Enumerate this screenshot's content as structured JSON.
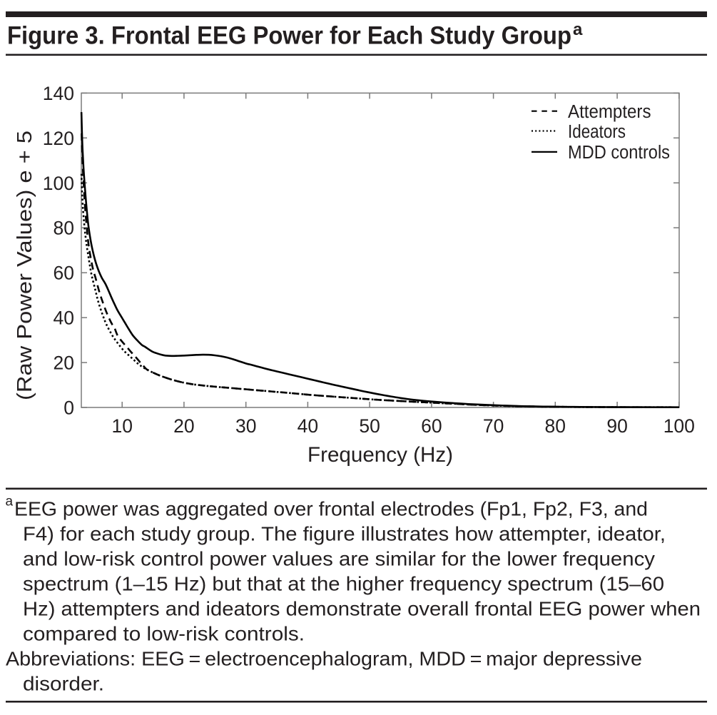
{
  "page": {
    "background": "#ffffff",
    "text_color": "#231f20",
    "rule_color": "#231f20",
    "axis_color": "#7a7a7a",
    "curve_color": "#000000"
  },
  "header": {
    "title": "Figure 3. Frontal EEG Power for Each Study Group",
    "superscript": "a"
  },
  "chart_data": {
    "type": "line",
    "xlabel": "Frequency (Hz)",
    "ylabel": "(Raw Power Values) e + 5",
    "xlim": [
      3.4,
      100
    ],
    "ylim": [
      0,
      140
    ],
    "x_ticks": [
      10,
      20,
      30,
      40,
      50,
      60,
      70,
      80,
      90,
      100
    ],
    "y_ticks": [
      0,
      20,
      40,
      60,
      80,
      100,
      120,
      140
    ],
    "grid": false,
    "legend_position": "top-right",
    "legend": [
      "Attempters",
      "Ideators",
      "MDD controls"
    ],
    "series": [
      {
        "name": "Attempters",
        "style": "dashed",
        "color": "#000000",
        "points": [
          [
            3.45,
            122
          ],
          [
            3.55,
            113.5
          ],
          [
            3.67,
            105.5
          ],
          [
            3.82,
            98
          ],
          [
            4,
            89.5
          ],
          [
            4.3,
            79.5
          ],
          [
            4.6,
            72
          ],
          [
            5,
            65.5
          ],
          [
            5.3,
            61.5
          ],
          [
            5.7,
            57.7
          ],
          [
            6.3,
            51.6
          ],
          [
            6.9,
            46.6
          ],
          [
            7.6,
            41.5
          ],
          [
            8.3,
            37.4
          ],
          [
            8.7,
            35.9
          ],
          [
            9.25,
            32.1
          ],
          [
            10,
            29.3
          ],
          [
            10.7,
            27.1
          ],
          [
            11.5,
            24.5
          ],
          [
            12.2,
            22.4
          ],
          [
            13,
            19.8
          ],
          [
            13.5,
            18.3
          ],
          [
            14,
            16.9
          ],
          [
            15,
            15.5
          ],
          [
            16,
            14.3
          ],
          [
            17,
            13.3
          ],
          [
            18,
            12.4
          ],
          [
            19,
            11.65
          ],
          [
            20,
            11
          ],
          [
            21,
            10.5
          ],
          [
            22,
            10.1
          ],
          [
            23,
            9.8
          ],
          [
            24,
            9.5
          ],
          [
            25,
            9.25
          ],
          [
            26,
            9
          ],
          [
            27,
            8.8
          ],
          [
            28,
            8.55
          ],
          [
            29,
            8.3
          ],
          [
            30,
            8.1
          ],
          [
            31,
            7.85
          ],
          [
            32,
            7.6
          ],
          [
            33,
            7.4
          ],
          [
            34,
            7.15
          ],
          [
            35,
            6.9
          ],
          [
            36,
            6.7
          ],
          [
            37,
            6.45
          ],
          [
            38,
            6.2
          ],
          [
            39,
            5.95
          ],
          [
            40,
            5.7
          ],
          [
            42,
            5.25
          ],
          [
            44,
            4.85
          ],
          [
            46,
            4.45
          ],
          [
            48,
            4.05
          ],
          [
            50,
            3.65
          ],
          [
            52,
            3.3
          ],
          [
            54,
            3
          ],
          [
            56,
            2.7
          ],
          [
            58,
            2.4
          ],
          [
            60,
            2.15
          ],
          [
            62,
            1.85
          ],
          [
            64,
            1.6
          ],
          [
            66,
            1.3
          ],
          [
            68,
            1.05
          ],
          [
            70,
            0.85
          ],
          [
            72,
            0.7
          ],
          [
            74,
            0.55
          ],
          [
            76,
            0.45
          ],
          [
            78,
            0.35
          ],
          [
            80,
            0.28
          ],
          [
            83,
            0.22
          ],
          [
            86,
            0.17
          ],
          [
            90,
            0.13
          ],
          [
            95,
            0.1
          ],
          [
            100,
            0.08
          ]
        ]
      },
      {
        "name": "Ideators",
        "style": "dotted",
        "color": "#000000",
        "points": [
          [
            3.42,
            104
          ],
          [
            3.5,
            97.5
          ],
          [
            3.6,
            91.5
          ],
          [
            3.75,
            85.5
          ],
          [
            3.95,
            79.5
          ],
          [
            4.2,
            73.5
          ],
          [
            4.5,
            68
          ],
          [
            4.8,
            63
          ],
          [
            5.1,
            58.5
          ],
          [
            5.65,
            52.5
          ],
          [
            6.15,
            47
          ],
          [
            6.8,
            41.6
          ],
          [
            7.45,
            37
          ],
          [
            8.4,
            32.1
          ],
          [
            9,
            29.7
          ],
          [
            9.6,
            27.5
          ],
          [
            10.3,
            25.2
          ],
          [
            11,
            23.4
          ],
          [
            11.8,
            21.4
          ],
          [
            12.6,
            19.4
          ],
          [
            13.3,
            18
          ],
          [
            14,
            16.9
          ],
          [
            15,
            15.5
          ],
          [
            16,
            14.3
          ],
          [
            17,
            13.3
          ],
          [
            18,
            12.4
          ],
          [
            19,
            11.65
          ],
          [
            20,
            11
          ],
          [
            21,
            10.5
          ],
          [
            22,
            10.1
          ],
          [
            23,
            9.8
          ],
          [
            24,
            9.5
          ],
          [
            25,
            9.25
          ],
          [
            26,
            9
          ],
          [
            27,
            8.8
          ],
          [
            28,
            8.55
          ],
          [
            29,
            8.3
          ],
          [
            30,
            8.1
          ],
          [
            31,
            7.85
          ],
          [
            32,
            7.6
          ],
          [
            33,
            7.4
          ],
          [
            34,
            7.15
          ],
          [
            35,
            6.9
          ],
          [
            36,
            6.7
          ],
          [
            37,
            6.45
          ],
          [
            38,
            6.2
          ],
          [
            39,
            5.95
          ],
          [
            40,
            5.7
          ],
          [
            42,
            5.25
          ],
          [
            44,
            4.85
          ],
          [
            46,
            4.45
          ],
          [
            48,
            4.05
          ],
          [
            50,
            3.65
          ],
          [
            52,
            3.3
          ],
          [
            54,
            3
          ],
          [
            56,
            2.7
          ],
          [
            58,
            2.4
          ],
          [
            60,
            2.15
          ],
          [
            62,
            1.85
          ],
          [
            64,
            1.6
          ],
          [
            66,
            1.3
          ],
          [
            68,
            1.05
          ],
          [
            70,
            0.85
          ],
          [
            72,
            0.7
          ],
          [
            74,
            0.55
          ],
          [
            76,
            0.45
          ],
          [
            78,
            0.35
          ],
          [
            80,
            0.28
          ],
          [
            83,
            0.22
          ],
          [
            86,
            0.17
          ],
          [
            90,
            0.13
          ],
          [
            95,
            0.1
          ],
          [
            100,
            0.08
          ]
        ]
      },
      {
        "name": "MDD controls",
        "style": "solid",
        "color": "#000000",
        "points": [
          [
            3.42,
            131.5
          ],
          [
            3.5,
            123
          ],
          [
            3.6,
            115
          ],
          [
            3.75,
            107
          ],
          [
            3.95,
            99
          ],
          [
            4.2,
            90.5
          ],
          [
            4.5,
            82
          ],
          [
            4.8,
            76.2
          ],
          [
            5.1,
            71.6
          ],
          [
            5.45,
            67.4
          ],
          [
            5.8,
            64
          ],
          [
            6.2,
            60.9
          ],
          [
            6.7,
            57.8
          ],
          [
            7.3,
            55
          ],
          [
            7.8,
            52
          ],
          [
            8.3,
            48.8
          ],
          [
            8.8,
            45.8
          ],
          [
            9.3,
            43
          ],
          [
            10,
            39.8
          ],
          [
            10.5,
            37.5
          ],
          [
            11,
            35.2
          ],
          [
            11.7,
            32.2
          ],
          [
            12.5,
            29.7
          ],
          [
            13.2,
            27.8
          ],
          [
            13.7,
            27
          ],
          [
            14.8,
            25
          ],
          [
            15.5,
            24.2
          ],
          [
            16.3,
            23.5
          ],
          [
            17,
            23.1
          ],
          [
            18,
            22.95
          ],
          [
            19,
            23
          ],
          [
            20,
            23.1
          ],
          [
            21,
            23.25
          ],
          [
            22,
            23.4
          ],
          [
            23,
            23.5
          ],
          [
            24,
            23.45
          ],
          [
            25,
            23.2
          ],
          [
            26,
            22.8
          ],
          [
            27,
            22.2
          ],
          [
            28,
            21.4
          ],
          [
            29,
            20.5
          ],
          [
            30,
            19.6
          ],
          [
            31,
            18.9
          ],
          [
            32,
            18.15
          ],
          [
            33,
            17.4
          ],
          [
            34,
            16.7
          ],
          [
            35,
            16.05
          ],
          [
            36,
            15.4
          ],
          [
            37,
            14.75
          ],
          [
            38,
            14.1
          ],
          [
            39,
            13.45
          ],
          [
            40,
            12.8
          ],
          [
            41,
            12.15
          ],
          [
            42,
            11.5
          ],
          [
            43,
            10.85
          ],
          [
            44,
            10.2
          ],
          [
            45,
            9.6
          ],
          [
            46,
            9
          ],
          [
            47,
            8.4
          ],
          [
            48,
            7.8
          ],
          [
            49,
            7.2
          ],
          [
            50,
            6.65
          ],
          [
            51,
            6.1
          ],
          [
            52,
            5.6
          ],
          [
            53,
            5.1
          ],
          [
            54,
            4.65
          ],
          [
            55,
            4.2
          ],
          [
            56,
            3.8
          ],
          [
            57,
            3.45
          ],
          [
            58,
            3.15
          ],
          [
            59,
            2.9
          ],
          [
            60,
            2.65
          ],
          [
            62,
            2.2
          ],
          [
            64,
            1.85
          ],
          [
            66,
            1.5
          ],
          [
            68,
            1.25
          ],
          [
            70,
            1
          ],
          [
            72,
            0.8
          ],
          [
            74,
            0.62
          ],
          [
            76,
            0.5
          ],
          [
            78,
            0.4
          ],
          [
            80,
            0.33
          ],
          [
            83,
            0.25
          ],
          [
            86,
            0.2
          ],
          [
            90,
            0.15
          ],
          [
            95,
            0.12
          ],
          [
            100,
            0.1
          ]
        ]
      }
    ]
  },
  "footnote": {
    "marker": "a",
    "lines": [
      {
        "text": "EEG power was aggregated over frontal electrodes (Fp1, Fp2, F3, and",
        "indent": 0,
        "has_marker": true
      },
      {
        "text": "F4) for each study group. The figure illustrates how attempter, ideator,",
        "indent": 1,
        "has_marker": false
      },
      {
        "text": "and low-risk control power values are similar for the lower frequency",
        "indent": 1,
        "has_marker": false
      },
      {
        "text": "spectrum (1–15 Hz) but that at the higher frequency spectrum (15–60",
        "indent": 1,
        "has_marker": false
      },
      {
        "text": "Hz) attempters and ideators demonstrate overall frontal EEG power when",
        "indent": 1,
        "has_marker": false
      },
      {
        "text": "compared to low-risk controls.",
        "indent": 1,
        "has_marker": false
      },
      {
        "text": "Abbreviations: EEG = electroencephalogram, MDD = major depressive",
        "indent": 0,
        "has_marker": false
      },
      {
        "text": "disorder.",
        "indent": 1,
        "has_marker": false
      }
    ]
  }
}
